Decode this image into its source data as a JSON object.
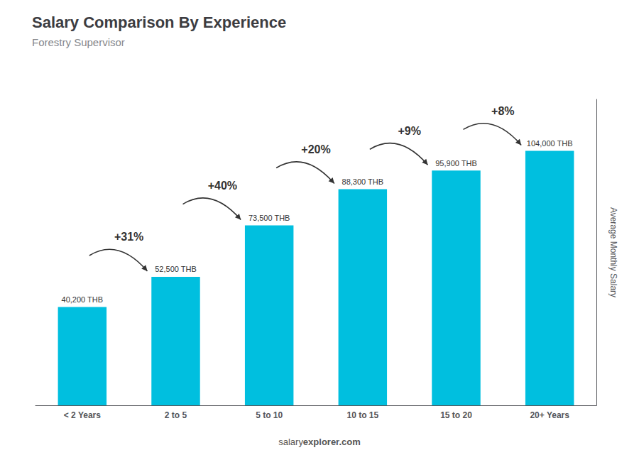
{
  "chart_data": {
    "type": "bar",
    "title": "Salary Comparison By Experience",
    "subtitle": "Forestry Supervisor",
    "categories": [
      "< 2 Years",
      "2 to 5",
      "5 to 10",
      "10 to 15",
      "15 to 20",
      "20+ Years"
    ],
    "values": [
      40200,
      52500,
      73500,
      88300,
      95900,
      104000
    ],
    "value_labels": [
      "40,200 THB",
      "52,500 THB",
      "73,500 THB",
      "88,300 THB",
      "95,900 THB",
      "104,000 THB"
    ],
    "data_labels": true,
    "color": "#00BFDF",
    "ylabel": "Average Monthly Salary",
    "ylim": [
      0,
      125000
    ],
    "grid": false,
    "tick_labels": "x",
    "annotations": [
      "+31%",
      "+40%",
      "+20%",
      "+9%",
      "+8%"
    ],
    "footer": [
      "salary",
      "explorer.com"
    ]
  }
}
